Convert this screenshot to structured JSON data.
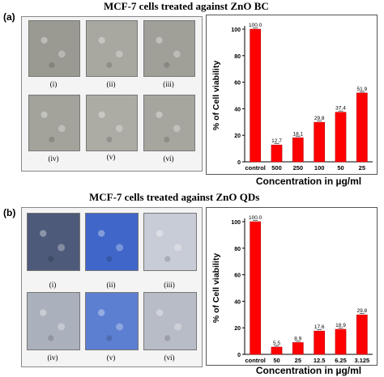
{
  "panels": [
    {
      "label": "(a)",
      "title": "MCF-7 cells treated against ZnO BC",
      "images": [
        {
          "caption": "(i)",
          "tone": "#9a9a92"
        },
        {
          "caption": "(ii)",
          "tone": "#a8a8a0"
        },
        {
          "caption": "(iii)",
          "tone": "#a0a098"
        },
        {
          "caption": "(iv)",
          "tone": "#a3a39b"
        },
        {
          "caption": "(v)",
          "tone": "#acaca4"
        },
        {
          "caption": "(vi)",
          "tone": "#a6a69e"
        }
      ],
      "chart_data": {
        "type": "bar",
        "categories": [
          "control",
          "500",
          "250",
          "100",
          "50",
          "25"
        ],
        "values": [
          100.0,
          12.7,
          18.1,
          29.8,
          37.4,
          51.9
        ],
        "value_labels": [
          "100.0",
          "12.7",
          "18.1",
          "29.8",
          "37.4",
          "51.9"
        ],
        "ylabel": "% of Cell viability",
        "xlabel": "Concentration in µg/ml",
        "ylim": [
          0,
          100
        ],
        "yticks": [
          "0",
          "20",
          "40",
          "60",
          "80",
          "100"
        ],
        "bar_color": "#ff0000"
      }
    },
    {
      "label": "(b)",
      "title": "MCF-7 cells treated against ZnO QDs",
      "images": [
        {
          "caption": "(i)",
          "tone": "#4d5a7a"
        },
        {
          "caption": "(ii)",
          "tone": "#3f66c8"
        },
        {
          "caption": "(iii)",
          "tone": "#c8ccd6"
        },
        {
          "caption": "(iv)",
          "tone": "#aab0bc"
        },
        {
          "caption": "(v)",
          "tone": "#5d7fd2"
        },
        {
          "caption": "(vi)",
          "tone": "#b8bcc6"
        }
      ],
      "chart_data": {
        "type": "bar",
        "categories": [
          "control",
          "50",
          "25",
          "12.5",
          "6.25",
          "3.125"
        ],
        "values": [
          100.0,
          5.5,
          8.9,
          17.6,
          18.9,
          29.8
        ],
        "value_labels": [
          "100.0",
          "5.5",
          "8.9",
          "17.6",
          "18.9",
          "29.8"
        ],
        "ylabel": "% of Cell viability",
        "xlabel": "Concentration in µg/ml",
        "ylim": [
          0,
          100
        ],
        "yticks": [
          "0",
          "20",
          "40",
          "60",
          "80",
          "100"
        ],
        "bar_color": "#ff0000"
      }
    }
  ]
}
